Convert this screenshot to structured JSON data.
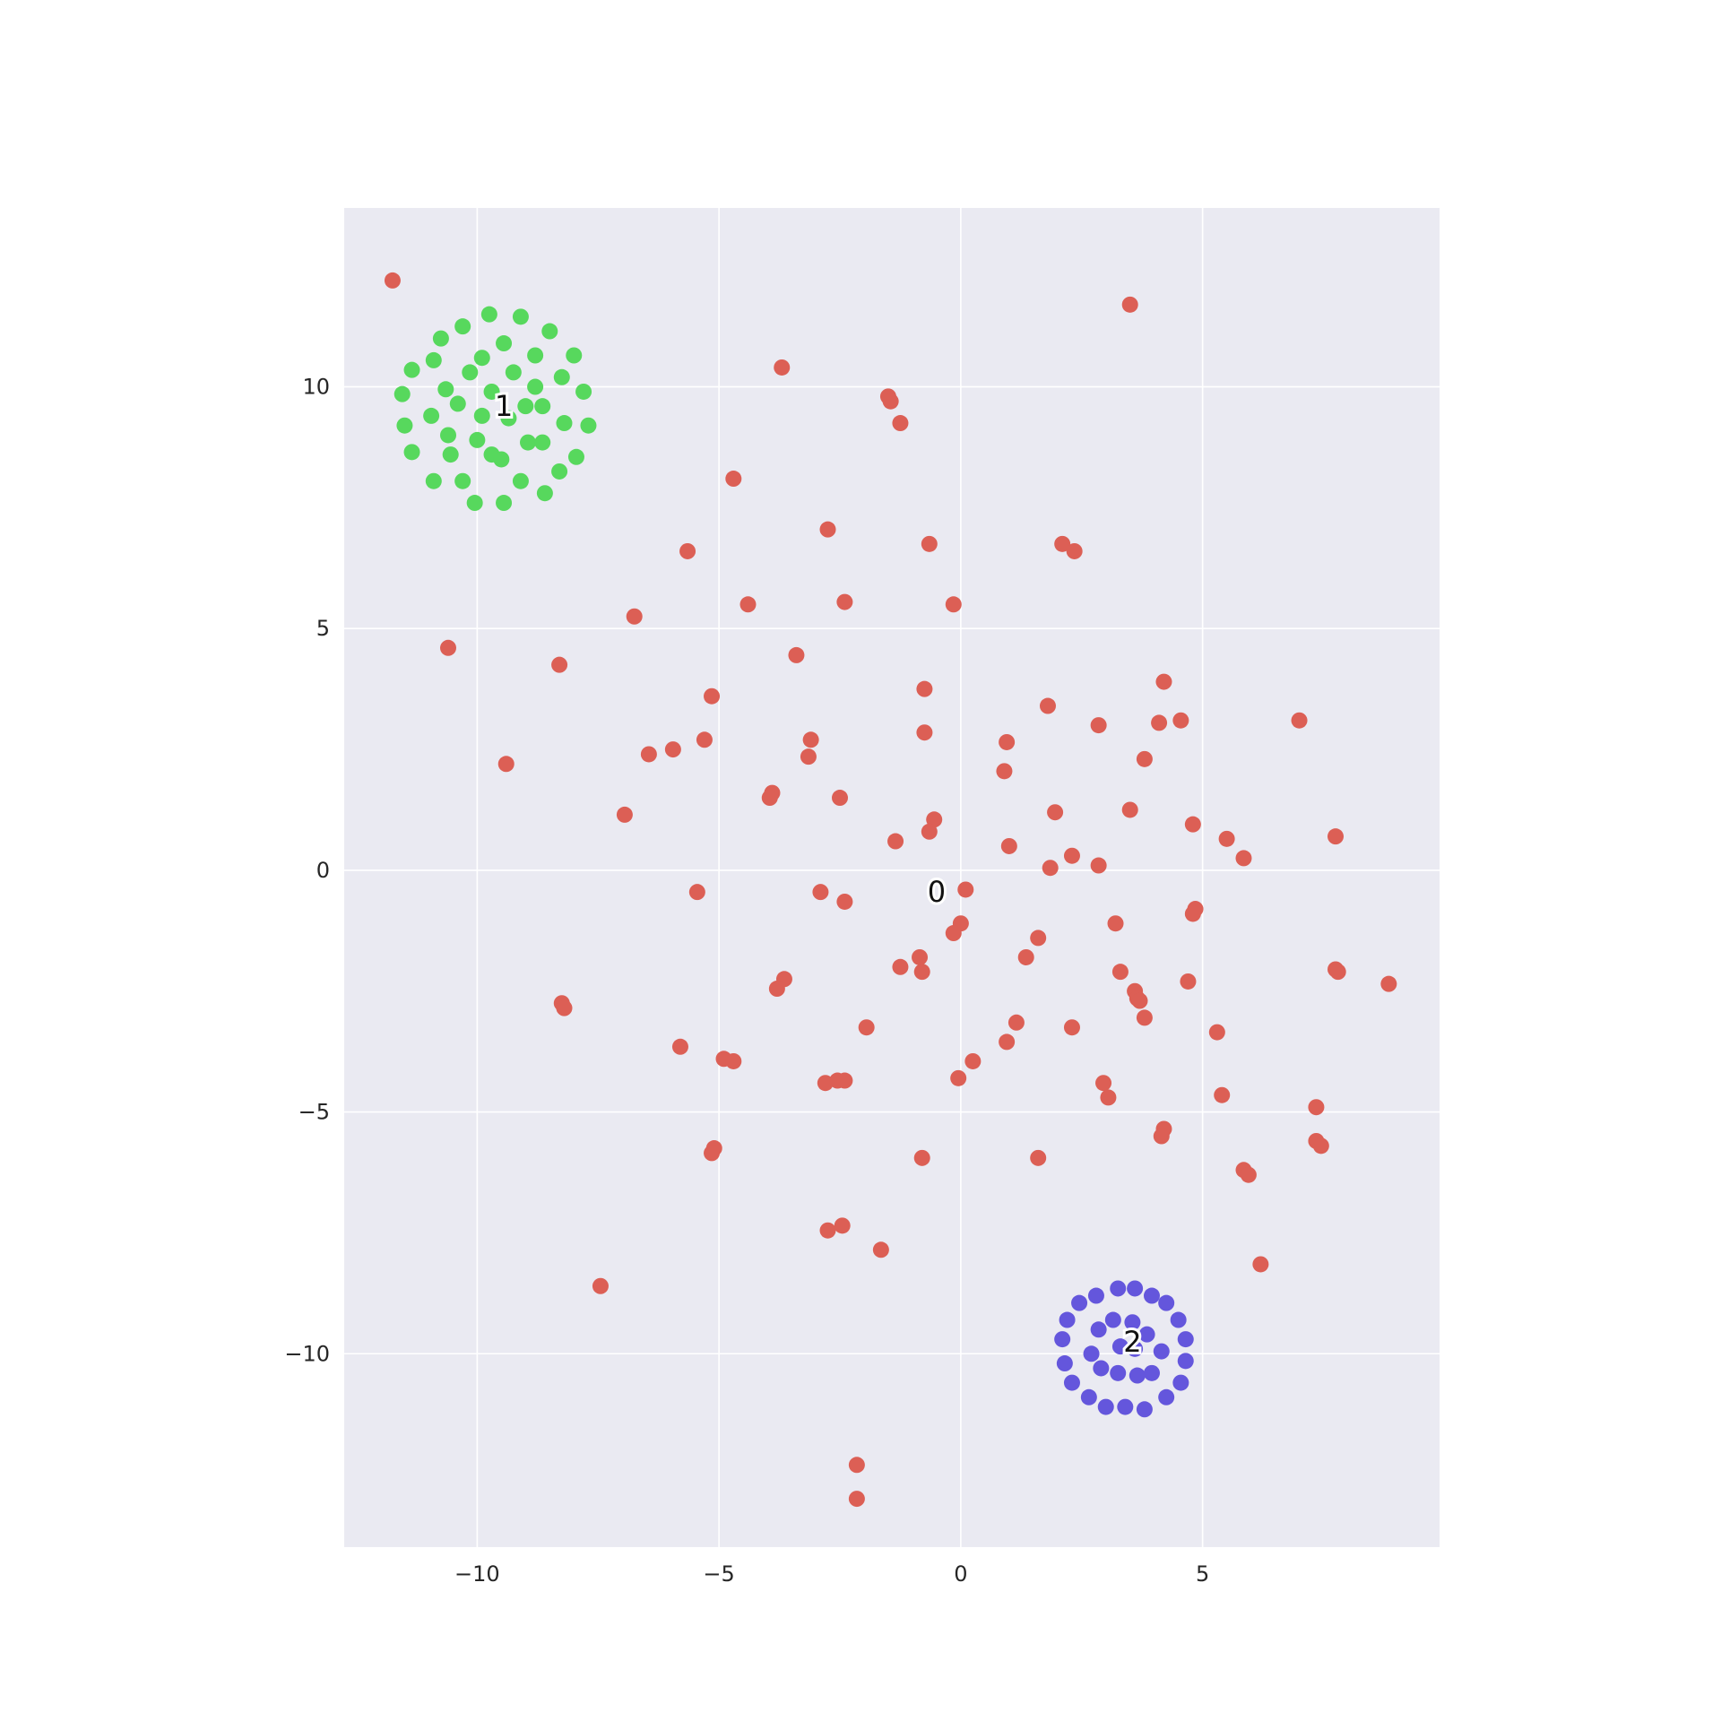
{
  "chart_data": {
    "type": "scatter",
    "title": "",
    "xlabel": "",
    "ylabel": "",
    "xlim": [
      -12.75,
      9.9
    ],
    "ylim": [
      -14.0,
      13.7
    ],
    "x_ticks": [
      -10,
      -5,
      0,
      5
    ],
    "y_ticks": [
      10,
      5,
      0,
      -5,
      -10
    ],
    "x_tick_labels": [
      "−10",
      "−5",
      "0",
      "5"
    ],
    "y_tick_labels": [
      "10",
      "5",
      "0",
      "−5",
      "−10"
    ],
    "grid": true,
    "background": "#eaeaf2",
    "series": [
      {
        "label_text": "0",
        "label_pos": [
          -0.5,
          -0.45
        ],
        "color": "#dc5f55",
        "points": [
          [
            -11.75,
            12.2
          ],
          [
            3.5,
            11.7
          ],
          [
            -3.7,
            10.4
          ],
          [
            -1.5,
            9.8
          ],
          [
            -1.45,
            9.7
          ],
          [
            -1.25,
            9.25
          ],
          [
            -4.7,
            8.1
          ],
          [
            -2.75,
            7.05
          ],
          [
            -0.65,
            6.75
          ],
          [
            2.1,
            6.75
          ],
          [
            2.35,
            6.6
          ],
          [
            -5.65,
            6.6
          ],
          [
            -6.75,
            5.25
          ],
          [
            -4.4,
            5.5
          ],
          [
            -2.4,
            5.55
          ],
          [
            -0.15,
            5.5
          ],
          [
            -10.6,
            4.6
          ],
          [
            -8.3,
            4.25
          ],
          [
            -3.4,
            4.45
          ],
          [
            4.2,
            3.9
          ],
          [
            -5.15,
            3.6
          ],
          [
            -0.75,
            3.75
          ],
          [
            1.8,
            3.4
          ],
          [
            4.1,
            3.05
          ],
          [
            4.55,
            3.1
          ],
          [
            2.85,
            3.0
          ],
          [
            7.0,
            3.1
          ],
          [
            -0.75,
            2.85
          ],
          [
            -3.1,
            2.7
          ],
          [
            -5.3,
            2.7
          ],
          [
            0.95,
            2.65
          ],
          [
            -5.95,
            2.5
          ],
          [
            -6.45,
            2.4
          ],
          [
            -3.15,
            2.35
          ],
          [
            3.8,
            2.3
          ],
          [
            -9.4,
            2.2
          ],
          [
            0.9,
            2.05
          ],
          [
            -3.9,
            1.6
          ],
          [
            -3.95,
            1.5
          ],
          [
            -2.5,
            1.5
          ],
          [
            3.5,
            1.25
          ],
          [
            1.95,
            1.2
          ],
          [
            -6.95,
            1.15
          ],
          [
            -0.55,
            1.05
          ],
          [
            4.8,
            0.95
          ],
          [
            -0.65,
            0.8
          ],
          [
            7.75,
            0.7
          ],
          [
            5.5,
            0.65
          ],
          [
            -1.35,
            0.6
          ],
          [
            1.0,
            0.5
          ],
          [
            2.3,
            0.3
          ],
          [
            5.85,
            0.25
          ],
          [
            2.85,
            0.1
          ],
          [
            1.85,
            0.05
          ],
          [
            0.1,
            -0.4
          ],
          [
            -5.45,
            -0.45
          ],
          [
            -2.9,
            -0.45
          ],
          [
            -2.4,
            -0.65
          ],
          [
            4.85,
            -0.8
          ],
          [
            4.8,
            -0.9
          ],
          [
            0.0,
            -1.1
          ],
          [
            3.2,
            -1.1
          ],
          [
            -0.15,
            -1.3
          ],
          [
            1.6,
            -1.4
          ],
          [
            1.35,
            -1.8
          ],
          [
            -0.85,
            -1.8
          ],
          [
            -1.25,
            -2.0
          ],
          [
            -0.8,
            -2.1
          ],
          [
            3.3,
            -2.1
          ],
          [
            7.75,
            -2.05
          ],
          [
            7.8,
            -2.1
          ],
          [
            8.85,
            -2.35
          ],
          [
            -3.65,
            -2.25
          ],
          [
            -3.8,
            -2.45
          ],
          [
            4.7,
            -2.3
          ],
          [
            3.6,
            -2.5
          ],
          [
            3.65,
            -2.65
          ],
          [
            3.7,
            -2.7
          ],
          [
            -8.25,
            -2.75
          ],
          [
            -8.2,
            -2.85
          ],
          [
            3.8,
            -3.05
          ],
          [
            1.15,
            -3.15
          ],
          [
            -1.95,
            -3.25
          ],
          [
            2.3,
            -3.25
          ],
          [
            5.3,
            -3.35
          ],
          [
            0.95,
            -3.55
          ],
          [
            -5.8,
            -3.65
          ],
          [
            -4.9,
            -3.9
          ],
          [
            -4.7,
            -3.95
          ],
          [
            0.25,
            -3.95
          ],
          [
            -0.05,
            -4.3
          ],
          [
            -2.8,
            -4.4
          ],
          [
            -2.55,
            -4.35
          ],
          [
            -2.4,
            -4.35
          ],
          [
            2.95,
            -4.4
          ],
          [
            3.05,
            -4.7
          ],
          [
            5.4,
            -4.65
          ],
          [
            7.35,
            -4.9
          ],
          [
            4.2,
            -5.35
          ],
          [
            4.15,
            -5.5
          ],
          [
            -5.1,
            -5.75
          ],
          [
            -5.15,
            -5.85
          ],
          [
            7.35,
            -5.6
          ],
          [
            7.45,
            -5.7
          ],
          [
            1.6,
            -5.95
          ],
          [
            -0.8,
            -5.95
          ],
          [
            5.85,
            -6.2
          ],
          [
            5.95,
            -6.3
          ],
          [
            -2.75,
            -7.45
          ],
          [
            -2.45,
            -7.35
          ],
          [
            -1.65,
            -7.85
          ],
          [
            6.2,
            -8.15
          ],
          [
            -7.45,
            -8.6
          ],
          [
            -2.15,
            -12.3
          ],
          [
            -2.15,
            -13.0
          ]
        ]
      },
      {
        "label_text": "1",
        "label_pos": [
          -9.45,
          9.6
        ],
        "color": "#57d85d",
        "points": [
          [
            -9.75,
            11.5
          ],
          [
            -9.1,
            11.45
          ],
          [
            -10.3,
            11.25
          ],
          [
            -8.5,
            11.15
          ],
          [
            -10.75,
            11.0
          ],
          [
            -9.45,
            10.9
          ],
          [
            -8.0,
            10.65
          ],
          [
            -8.8,
            10.65
          ],
          [
            -9.9,
            10.6
          ],
          [
            -10.9,
            10.55
          ],
          [
            -11.35,
            10.35
          ],
          [
            -9.25,
            10.3
          ],
          [
            -10.15,
            10.3
          ],
          [
            -8.25,
            10.2
          ],
          [
            -8.8,
            10.0
          ],
          [
            -10.65,
            9.95
          ],
          [
            -9.7,
            9.9
          ],
          [
            -11.55,
            9.85
          ],
          [
            -7.8,
            9.9
          ],
          [
            -10.4,
            9.65
          ],
          [
            -9.0,
            9.6
          ],
          [
            -8.65,
            9.6
          ],
          [
            -9.9,
            9.4
          ],
          [
            -10.95,
            9.4
          ],
          [
            -9.35,
            9.35
          ],
          [
            -11.5,
            9.2
          ],
          [
            -8.2,
            9.25
          ],
          [
            -7.7,
            9.2
          ],
          [
            -10.6,
            9.0
          ],
          [
            -10.0,
            8.9
          ],
          [
            -8.95,
            8.85
          ],
          [
            -8.65,
            8.85
          ],
          [
            -11.35,
            8.65
          ],
          [
            -10.55,
            8.6
          ],
          [
            -9.7,
            8.6
          ],
          [
            -7.95,
            8.55
          ],
          [
            -9.5,
            8.5
          ],
          [
            -8.3,
            8.25
          ],
          [
            -10.9,
            8.05
          ],
          [
            -10.3,
            8.05
          ],
          [
            -9.1,
            8.05
          ],
          [
            -8.6,
            7.8
          ],
          [
            -10.05,
            7.6
          ],
          [
            -9.45,
            7.6
          ]
        ]
      },
      {
        "label_text": "2",
        "label_pos": [
          3.55,
          -9.75
        ],
        "color": "#6456dc",
        "points": [
          [
            3.25,
            -8.65
          ],
          [
            3.6,
            -8.65
          ],
          [
            2.8,
            -8.8
          ],
          [
            3.95,
            -8.8
          ],
          [
            2.45,
            -8.95
          ],
          [
            4.25,
            -8.95
          ],
          [
            3.15,
            -9.3
          ],
          [
            3.55,
            -9.35
          ],
          [
            2.2,
            -9.3
          ],
          [
            4.5,
            -9.3
          ],
          [
            2.85,
            -9.5
          ],
          [
            3.85,
            -9.6
          ],
          [
            2.1,
            -9.7
          ],
          [
            4.65,
            -9.7
          ],
          [
            3.3,
            -9.85
          ],
          [
            3.6,
            -9.9
          ],
          [
            2.7,
            -10.0
          ],
          [
            4.15,
            -9.95
          ],
          [
            2.9,
            -10.3
          ],
          [
            4.65,
            -10.15
          ],
          [
            2.15,
            -10.2
          ],
          [
            3.25,
            -10.4
          ],
          [
            3.65,
            -10.45
          ],
          [
            3.95,
            -10.4
          ],
          [
            2.3,
            -10.6
          ],
          [
            4.55,
            -10.6
          ],
          [
            2.65,
            -10.9
          ],
          [
            4.25,
            -10.9
          ],
          [
            3.0,
            -11.1
          ],
          [
            3.4,
            -11.1
          ],
          [
            3.8,
            -11.15
          ]
        ]
      }
    ]
  }
}
